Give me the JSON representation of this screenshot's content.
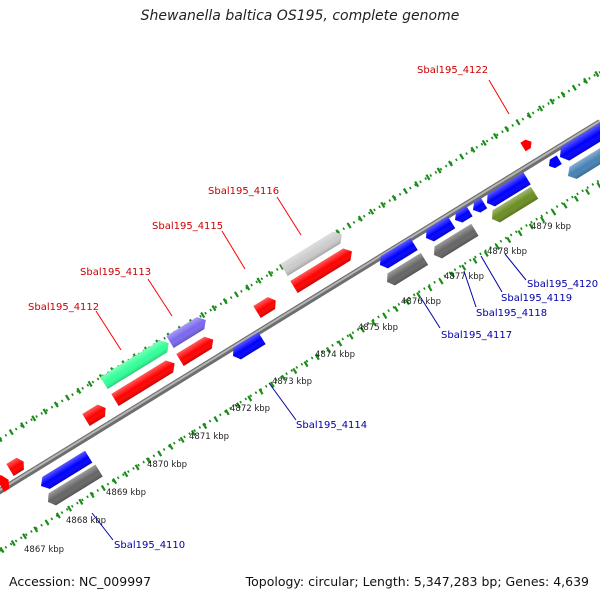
{
  "title": "Shewanella baltica OS195, complete genome",
  "footer": {
    "accession": "Accession: NC_009997",
    "summary": "Topology: circular; Length: 5,347,283 bp; Genes: 4,639"
  },
  "colors": {
    "backbone": "#8c8c8c",
    "tick_green": "#1a8c1a",
    "label_red": "#cc0000",
    "label_blue": "#0000aa",
    "gene_red": "#ff0000",
    "gene_blue": "#0000ff",
    "gene_gray": "#666666",
    "gene_lightgray": "#cccccc",
    "gene_mint": "#33ff99",
    "gene_purple": "#7b68ee",
    "gene_olive": "#6b8e23",
    "gene_steel": "#4682b4"
  },
  "kbp_labels": [
    "4867 kbp",
    "4868 kbp",
    "4869 kbp",
    "4870 kbp",
    "4871 kbp",
    "4872 kbp",
    "4873 kbp",
    "4874 kbp",
    "4875 kbp",
    "4876 kbp",
    "4877 kbp",
    "4878 kbp",
    "4879 kbp"
  ],
  "gene_labels": [
    {
      "text": "Sbal195_4122",
      "strand": "forward"
    },
    {
      "text": "Sbal195_4116",
      "strand": "forward"
    },
    {
      "text": "Sbal195_4115",
      "strand": "forward"
    },
    {
      "text": "Sbal195_4113",
      "strand": "forward"
    },
    {
      "text": "Sbal195_4112",
      "strand": "forward"
    },
    {
      "text": "Sbal195_4114",
      "strand": "reverse"
    },
    {
      "text": "Sbal195_4110",
      "strand": "reverse"
    },
    {
      "text": "Sbal195_4117",
      "strand": "reverse"
    },
    {
      "text": "Sbal195_4118",
      "strand": "reverse"
    },
    {
      "text": "Sbal195_4119",
      "strand": "reverse"
    },
    {
      "text": "Sbal195_4120",
      "strand": "reverse"
    }
  ]
}
